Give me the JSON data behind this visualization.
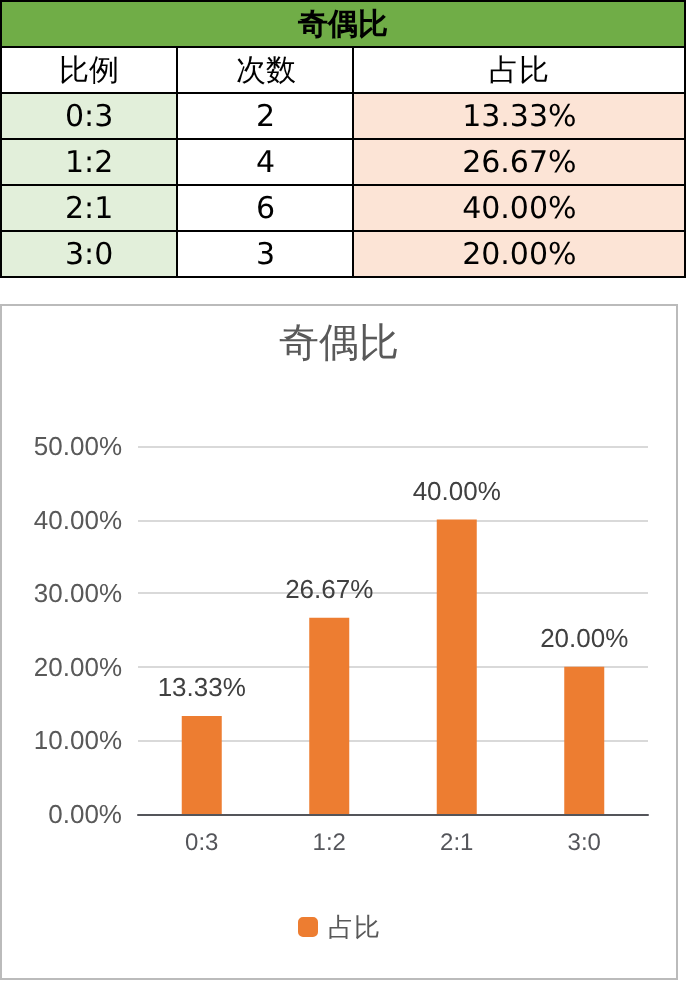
{
  "chart_data": [
    {
      "type": "other",
      "title": "奇偶比",
      "annotations": [
        "比例",
        "次数",
        "占比",
        "0:3",
        "2",
        "13.33%",
        "1:2",
        "4",
        "26.67%",
        "2:1",
        "6",
        "40.00%",
        "3:0",
        "3",
        "20.00%"
      ]
    },
    {
      "type": "bar",
      "title": "奇偶比",
      "categories": [
        "0:3",
        "1:2",
        "2:1",
        "3:0"
      ],
      "series": [
        {
          "name": "占比",
          "color": "#ed7d31",
          "values": [
            13.33,
            26.67,
            40.0,
            20.0
          ],
          "value_labels": [
            "13.33%",
            "26.67%",
            "40.00%",
            "20.00%"
          ]
        }
      ],
      "ylim": [
        0,
        50
      ],
      "yticks": [
        {
          "value": 0,
          "label": "0.00%"
        },
        {
          "value": 10,
          "label": "10.00%"
        },
        {
          "value": 20,
          "label": "20.00%"
        },
        {
          "value": 30,
          "label": "30.00%"
        },
        {
          "value": 40,
          "label": "40.00%"
        },
        {
          "value": 50,
          "label": "50.00%"
        }
      ],
      "grid": "y",
      "legend": "bottom"
    }
  ]
}
